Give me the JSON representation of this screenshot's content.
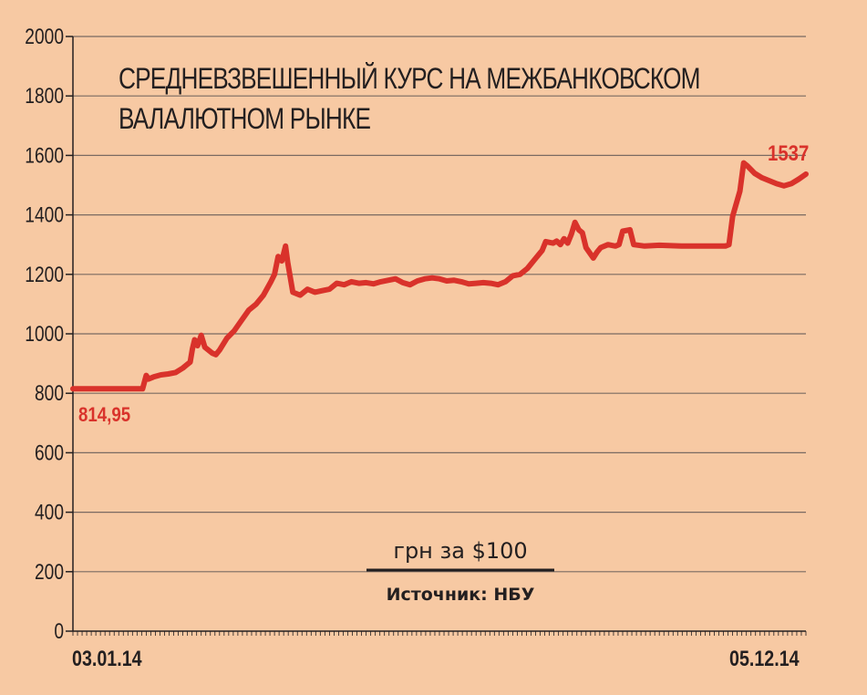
{
  "chart_data": {
    "type": "line",
    "title_lines": [
      "СРЕДНЕВЗВЕШЕННЫЙ КУРС НА МЕЖБАНКОВСКОМ",
      "ВАЛАЛЮТНОМ РЫНКЕ"
    ],
    "unit_label": "грн за $100",
    "source": "Источник: НБУ",
    "ylim": [
      0,
      2000
    ],
    "y_ticks": [
      0,
      200,
      400,
      600,
      800,
      1000,
      1200,
      1400,
      1600,
      1800,
      2000
    ],
    "x_start_label": "03.01.14",
    "x_end_label": "05.12.14",
    "start_value_label": "814,95",
    "end_value_label": "1537",
    "grid": true,
    "line_color": "#d9322b",
    "series": [
      {
        "points": [
          [
            0.0,
            815
          ],
          [
            0.02,
            815
          ],
          [
            0.05,
            815
          ],
          [
            0.08,
            815
          ],
          [
            0.095,
            815
          ],
          [
            0.1,
            860
          ],
          [
            0.103,
            848
          ],
          [
            0.11,
            855
          ],
          [
            0.12,
            862
          ],
          [
            0.13,
            865
          ],
          [
            0.14,
            870
          ],
          [
            0.15,
            885
          ],
          [
            0.155,
            895
          ],
          [
            0.16,
            905
          ],
          [
            0.163,
            950
          ],
          [
            0.166,
            980
          ],
          [
            0.17,
            960
          ],
          [
            0.175,
            995
          ],
          [
            0.18,
            955
          ],
          [
            0.19,
            935
          ],
          [
            0.195,
            930
          ],
          [
            0.2,
            945
          ],
          [
            0.21,
            985
          ],
          [
            0.22,
            1010
          ],
          [
            0.23,
            1045
          ],
          [
            0.24,
            1080
          ],
          [
            0.25,
            1100
          ],
          [
            0.26,
            1130
          ],
          [
            0.27,
            1175
          ],
          [
            0.275,
            1200
          ],
          [
            0.28,
            1260
          ],
          [
            0.285,
            1245
          ],
          [
            0.29,
            1295
          ],
          [
            0.293,
            1240
          ],
          [
            0.3,
            1140
          ],
          [
            0.31,
            1130
          ],
          [
            0.32,
            1150
          ],
          [
            0.33,
            1140
          ],
          [
            0.34,
            1145
          ],
          [
            0.35,
            1150
          ],
          [
            0.36,
            1170
          ],
          [
            0.37,
            1165
          ],
          [
            0.38,
            1175
          ],
          [
            0.39,
            1170
          ],
          [
            0.4,
            1172
          ],
          [
            0.41,
            1168
          ],
          [
            0.42,
            1175
          ],
          [
            0.43,
            1180
          ],
          [
            0.44,
            1185
          ],
          [
            0.45,
            1172
          ],
          [
            0.46,
            1165
          ],
          [
            0.47,
            1178
          ],
          [
            0.48,
            1185
          ],
          [
            0.49,
            1188
          ],
          [
            0.5,
            1185
          ],
          [
            0.51,
            1178
          ],
          [
            0.52,
            1180
          ],
          [
            0.53,
            1175
          ],
          [
            0.54,
            1168
          ],
          [
            0.55,
            1170
          ],
          [
            0.56,
            1172
          ],
          [
            0.57,
            1170
          ],
          [
            0.58,
            1165
          ],
          [
            0.59,
            1175
          ],
          [
            0.6,
            1195
          ],
          [
            0.61,
            1200
          ],
          [
            0.62,
            1220
          ],
          [
            0.63,
            1250
          ],
          [
            0.64,
            1280
          ],
          [
            0.645,
            1310
          ],
          [
            0.655,
            1305
          ],
          [
            0.66,
            1312
          ],
          [
            0.665,
            1300
          ],
          [
            0.67,
            1320
          ],
          [
            0.675,
            1305
          ],
          [
            0.68,
            1335
          ],
          [
            0.685,
            1375
          ],
          [
            0.69,
            1350
          ],
          [
            0.695,
            1340
          ],
          [
            0.7,
            1290
          ],
          [
            0.71,
            1255
          ],
          [
            0.715,
            1275
          ],
          [
            0.72,
            1290
          ],
          [
            0.73,
            1300
          ],
          [
            0.74,
            1295
          ],
          [
            0.745,
            1300
          ],
          [
            0.75,
            1345
          ],
          [
            0.76,
            1350
          ],
          [
            0.765,
            1300
          ],
          [
            0.78,
            1295
          ],
          [
            0.8,
            1298
          ],
          [
            0.83,
            1295
          ],
          [
            0.86,
            1295
          ],
          [
            0.89,
            1295
          ],
          [
            0.895,
            1300
          ],
          [
            0.9,
            1395
          ],
          [
            0.91,
            1480
          ],
          [
            0.915,
            1575
          ],
          [
            0.92,
            1565
          ],
          [
            0.93,
            1540
          ],
          [
            0.94,
            1525
          ],
          [
            0.95,
            1515
          ],
          [
            0.96,
            1505
          ],
          [
            0.97,
            1498
          ],
          [
            0.98,
            1505
          ],
          [
            0.99,
            1520
          ],
          [
            1.0,
            1537
          ]
        ]
      }
    ]
  }
}
